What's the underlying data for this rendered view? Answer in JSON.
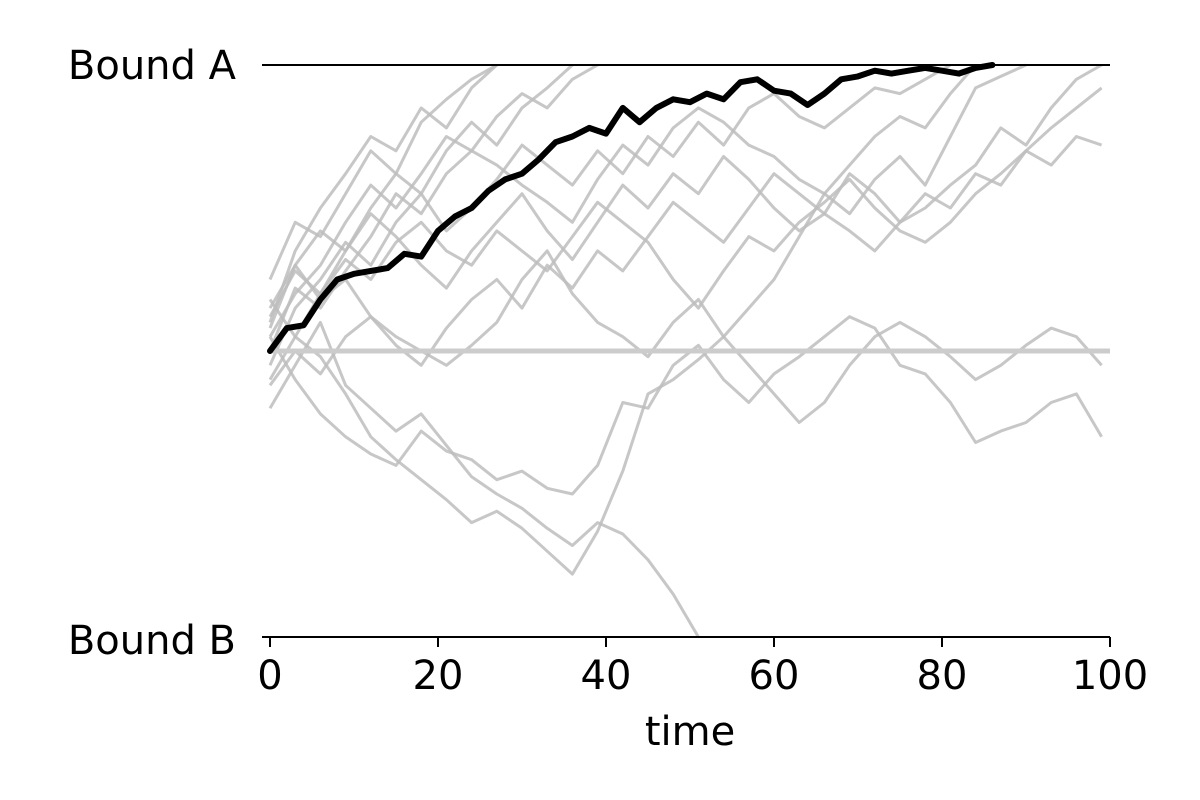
{
  "chart_data": {
    "type": "line",
    "title": "",
    "xlabel": "time",
    "ylabel": "",
    "xlim": [
      0,
      100
    ],
    "ylim": [
      -1,
      1
    ],
    "x_ticks": [
      0,
      20,
      40,
      60,
      80,
      100
    ],
    "grid": false,
    "legend": "none",
    "bounds": [
      {
        "label": "Bound A",
        "y": 1
      },
      {
        "label": "Bound B",
        "y": -1
      }
    ],
    "reference_line": {
      "y": 0,
      "color": "#cccccc"
    },
    "colors": {
      "highlight": "#000000",
      "background_paths": "#bdbdbd"
    },
    "highlight_path": {
      "x": [
        0,
        2,
        4,
        6,
        8,
        10,
        12,
        14,
        16,
        18,
        20,
        22,
        24,
        26,
        28,
        30,
        32,
        34,
        36,
        38,
        40,
        42,
        44,
        46,
        48,
        50,
        52,
        54,
        56,
        58,
        60,
        62,
        64,
        66,
        68,
        70,
        72,
        74,
        76,
        78,
        80,
        82,
        84,
        86
      ],
      "y": [
        0.0,
        0.08,
        0.09,
        0.18,
        0.25,
        0.27,
        0.28,
        0.29,
        0.34,
        0.33,
        0.42,
        0.47,
        0.5,
        0.56,
        0.6,
        0.62,
        0.67,
        0.73,
        0.75,
        0.78,
        0.76,
        0.85,
        0.8,
        0.85,
        0.88,
        0.87,
        0.9,
        0.88,
        0.94,
        0.95,
        0.91,
        0.9,
        0.86,
        0.9,
        0.95,
        0.96,
        0.98,
        0.97,
        0.98,
        0.99,
        0.98,
        0.97,
        0.99,
        1.0
      ]
    },
    "background_paths": [
      {
        "x": [
          0,
          3,
          6,
          9,
          12,
          15,
          18,
          21,
          24,
          27,
          30,
          33,
          36,
          39,
          42,
          45,
          48,
          51,
          54,
          57,
          60,
          63,
          66,
          69,
          72,
          75,
          78,
          81,
          84,
          87,
          90,
          93,
          96,
          99
        ],
        "y": [
          -0.2,
          -0.05,
          0.1,
          -0.12,
          -0.2,
          -0.28,
          -0.22,
          -0.33,
          -0.44,
          -0.5,
          -0.55,
          -0.62,
          -0.68,
          -0.6,
          -0.64,
          -0.73,
          -0.85,
          -1.0,
          null,
          null,
          null,
          null,
          null,
          null,
          null,
          null,
          null,
          null,
          null,
          null,
          null,
          null,
          null,
          null
        ]
      },
      {
        "x": [
          0,
          3,
          6,
          9,
          12,
          15,
          18,
          21,
          24,
          27,
          30,
          33,
          36,
          39,
          42,
          45,
          48,
          51,
          54,
          57,
          60,
          63,
          66,
          69,
          72,
          75,
          78,
          81,
          84,
          87,
          90,
          93,
          96,
          99
        ],
        "y": [
          -0.1,
          0.05,
          -0.02,
          -0.15,
          -0.3,
          -0.38,
          -0.45,
          -0.52,
          -0.6,
          -0.56,
          -0.62,
          -0.7,
          -0.78,
          -0.63,
          -0.42,
          -0.15,
          -0.1,
          -0.03,
          0.05,
          0.15,
          0.25,
          0.4,
          0.55,
          0.48,
          0.6,
          0.68,
          0.58,
          0.75,
          0.92,
          0.96,
          1.0,
          null,
          null,
          null
        ]
      },
      {
        "x": [
          0,
          3,
          6,
          9,
          12,
          15,
          18,
          21,
          24,
          27,
          30,
          33,
          36,
          39,
          42,
          45,
          48,
          51,
          54,
          57,
          60,
          63,
          66,
          69,
          72,
          75,
          78,
          81,
          84,
          87,
          90,
          93,
          96,
          99
        ],
        "y": [
          0.05,
          -0.1,
          -0.22,
          -0.3,
          -0.36,
          -0.4,
          -0.28,
          -0.35,
          -0.38,
          -0.45,
          -0.42,
          -0.48,
          -0.5,
          -0.4,
          -0.18,
          -0.2,
          -0.05,
          0.02,
          -0.1,
          -0.18,
          -0.08,
          -0.02,
          0.05,
          0.12,
          0.08,
          -0.05,
          -0.08,
          -0.18,
          -0.32,
          -0.28,
          -0.25,
          -0.18,
          -0.15,
          -0.3
        ]
      },
      {
        "x": [
          0,
          3,
          6,
          9,
          12,
          15,
          18,
          21,
          24,
          27,
          30,
          33,
          36,
          39,
          42,
          45,
          48,
          51,
          54,
          57,
          60,
          63,
          66,
          69,
          72,
          75,
          78,
          81,
          84,
          87,
          90,
          93,
          96,
          99
        ],
        "y": [
          0.15,
          0.3,
          0.18,
          0.25,
          0.12,
          0.05,
          0.0,
          -0.05,
          0.02,
          0.1,
          0.25,
          0.35,
          0.2,
          0.1,
          0.05,
          -0.02,
          0.1,
          0.18,
          0.05,
          -0.05,
          -0.15,
          -0.25,
          -0.18,
          -0.05,
          0.05,
          0.1,
          0.05,
          -0.02,
          -0.1,
          -0.05,
          0.02,
          0.08,
          0.05,
          -0.05
        ]
      },
      {
        "x": [
          0,
          3,
          6,
          9,
          12,
          15,
          18,
          21,
          24,
          27,
          30,
          33,
          36,
          39,
          42,
          45,
          48,
          51,
          54,
          57,
          60,
          63,
          66,
          69,
          72,
          75,
          78,
          81,
          84,
          87,
          90,
          93,
          96,
          99
        ],
        "y": [
          0.25,
          0.45,
          0.4,
          0.55,
          0.7,
          0.62,
          0.8,
          0.88,
          0.95,
          1.0,
          null,
          null,
          null,
          null,
          null,
          null,
          null,
          null,
          null,
          null,
          null,
          null,
          null,
          null,
          null,
          null,
          null,
          null,
          null,
          null,
          null,
          null,
          null,
          null
        ]
      },
      {
        "x": [
          0,
          3,
          6,
          9,
          12,
          15,
          18,
          21,
          24,
          27,
          30,
          33,
          36,
          39,
          42,
          45,
          48,
          51,
          54,
          57,
          60,
          63,
          66,
          69,
          72,
          75,
          78,
          81,
          84,
          87,
          90,
          93,
          96,
          99
        ],
        "y": [
          0.1,
          0.35,
          0.5,
          0.62,
          0.75,
          0.7,
          0.85,
          0.78,
          0.92,
          1.0,
          null,
          null,
          null,
          null,
          null,
          null,
          null,
          null,
          null,
          null,
          null,
          null,
          null,
          null,
          null,
          null,
          null,
          null,
          null,
          null,
          null,
          null,
          null,
          null
        ]
      },
      {
        "x": [
          0,
          3,
          6,
          9,
          12,
          15,
          18,
          21,
          24,
          27,
          30,
          33,
          36,
          39,
          42,
          45,
          48,
          51,
          54,
          57,
          60,
          63,
          66,
          69,
          72,
          75,
          78,
          81,
          84,
          87,
          90,
          93,
          96,
          99
        ],
        "y": [
          0.05,
          0.2,
          0.3,
          0.45,
          0.58,
          0.5,
          0.62,
          0.75,
          0.7,
          0.82,
          0.9,
          0.85,
          0.95,
          1.0,
          null,
          null,
          null,
          null,
          null,
          null,
          null,
          null,
          null,
          null,
          null,
          null,
          null,
          null,
          null,
          null,
          null,
          null,
          null,
          null
        ]
      },
      {
        "x": [
          0,
          3,
          6,
          9,
          12,
          15,
          18,
          21,
          24,
          27,
          30,
          33,
          36,
          39,
          42,
          45,
          48,
          51,
          54,
          57,
          60,
          63,
          66,
          69,
          72,
          75,
          78,
          81,
          84,
          87,
          90,
          93,
          96,
          99
        ],
        "y": [
          -0.05,
          0.15,
          0.25,
          0.38,
          0.3,
          0.45,
          0.55,
          0.42,
          0.5,
          0.6,
          0.72,
          0.65,
          0.58,
          0.7,
          0.62,
          0.75,
          0.68,
          0.8,
          0.72,
          0.85,
          0.9,
          0.82,
          0.78,
          0.85,
          0.92,
          0.9,
          0.95,
          1.0,
          null,
          null,
          null,
          null,
          null,
          null
        ]
      },
      {
        "x": [
          0,
          3,
          6,
          9,
          12,
          15,
          18,
          21,
          24,
          27,
          30,
          33,
          36,
          39,
          42,
          45,
          48,
          51,
          54,
          57,
          60,
          63,
          66,
          69,
          72,
          75,
          78,
          81,
          84,
          87,
          90,
          93,
          96,
          99
        ],
        "y": [
          0.12,
          0.28,
          0.2,
          0.35,
          0.48,
          0.4,
          0.3,
          0.22,
          0.35,
          0.45,
          0.55,
          0.42,
          0.32,
          0.45,
          0.58,
          0.5,
          0.62,
          0.55,
          0.68,
          0.6,
          0.5,
          0.42,
          0.48,
          0.62,
          0.55,
          0.45,
          0.5,
          0.58,
          0.65,
          0.78,
          0.72,
          0.85,
          0.95,
          1.0
        ]
      },
      {
        "x": [
          0,
          3,
          6,
          9,
          12,
          15,
          18,
          21,
          24,
          27,
          30,
          33,
          36,
          39,
          42,
          45,
          48,
          51,
          54,
          57,
          60,
          63,
          66,
          69,
          72,
          75,
          78,
          81,
          84,
          87,
          90,
          93,
          96,
          99
        ],
        "y": [
          0.18,
          0.05,
          0.2,
          0.32,
          0.25,
          0.38,
          0.45,
          0.35,
          0.3,
          0.42,
          0.35,
          0.28,
          0.4,
          0.52,
          0.45,
          0.38,
          0.25,
          0.15,
          0.28,
          0.4,
          0.35,
          0.45,
          0.52,
          0.6,
          0.5,
          0.42,
          0.38,
          0.45,
          0.55,
          0.62,
          0.7,
          0.65,
          0.75,
          0.72
        ]
      },
      {
        "x": [
          0,
          3,
          6,
          9,
          12,
          15,
          18,
          21,
          24,
          27,
          30,
          33,
          36,
          39,
          42,
          45,
          48,
          51,
          54,
          57,
          60,
          63,
          66,
          69,
          72,
          75,
          78,
          81,
          84,
          87,
          90,
          93,
          96,
          99
        ],
        "y": [
          0.0,
          0.22,
          0.15,
          0.28,
          0.4,
          0.55,
          0.48,
          0.62,
          0.7,
          0.65,
          0.58,
          0.52,
          0.45,
          0.6,
          0.72,
          0.65,
          0.78,
          0.85,
          0.8,
          0.72,
          0.68,
          0.6,
          0.55,
          0.65,
          0.75,
          0.82,
          0.78,
          0.9,
          1.0,
          null,
          null,
          null,
          null,
          null
        ]
      },
      {
        "x": [
          0,
          3,
          6,
          9,
          12,
          15,
          18,
          21,
          24,
          27,
          30,
          33,
          36,
          39,
          42,
          45,
          48,
          51,
          54,
          57,
          60,
          63,
          66,
          69,
          72,
          75,
          78,
          81,
          84,
          87,
          90,
          93,
          96,
          99
        ],
        "y": [
          0.08,
          0.3,
          0.42,
          0.35,
          0.5,
          0.62,
          0.55,
          0.7,
          0.8,
          0.72,
          0.85,
          0.92,
          1.0,
          null,
          null,
          null,
          null,
          null,
          null,
          null,
          null,
          null,
          null,
          null,
          null,
          null,
          null,
          null,
          null,
          null,
          null,
          null,
          null,
          null
        ]
      },
      {
        "x": [
          0,
          3,
          6,
          9,
          12,
          15,
          18,
          21,
          24,
          27,
          30,
          33,
          36,
          39,
          42,
          45,
          48,
          51,
          54,
          57,
          60,
          63,
          66,
          69,
          72,
          75,
          78,
          81,
          84,
          87,
          90,
          93,
          96,
          99
        ],
        "y": [
          -0.12,
          0.0,
          -0.08,
          0.05,
          0.12,
          0.02,
          -0.05,
          0.08,
          0.18,
          0.25,
          0.15,
          0.3,
          0.22,
          0.35,
          0.28,
          0.4,
          0.52,
          0.45,
          0.38,
          0.5,
          0.62,
          0.55,
          0.48,
          0.42,
          0.35,
          0.45,
          0.55,
          0.5,
          0.62,
          0.58,
          0.7,
          0.78,
          0.85,
          0.92
        ]
      }
    ]
  }
}
